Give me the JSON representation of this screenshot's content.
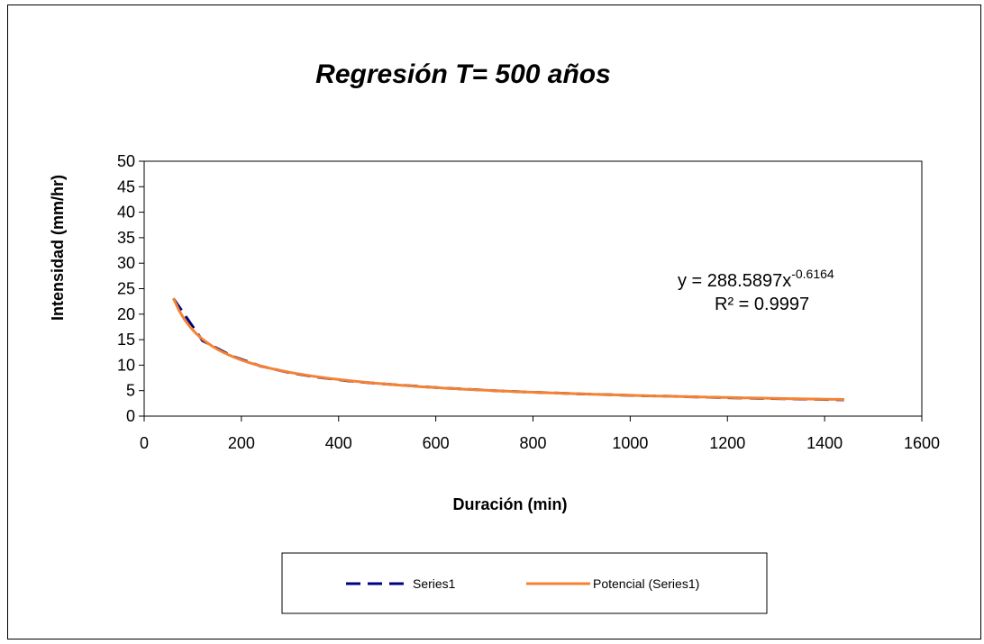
{
  "chart_data": {
    "type": "line",
    "title": "Regresión T= 500 años",
    "xlabel": "Duración (min)",
    "ylabel": "Intensidad (mm/hr)",
    "xlim": [
      0,
      1600
    ],
    "ylim": [
      0,
      50
    ],
    "x_ticks": [
      "0",
      "200",
      "400",
      "600",
      "800",
      "1000",
      "1200",
      "1400",
      "1600"
    ],
    "y_ticks": [
      "0",
      "5",
      "10",
      "15",
      "20",
      "25",
      "30",
      "35",
      "40",
      "45",
      "50"
    ],
    "grid": false,
    "legend_position": "bottom",
    "series": [
      {
        "name": "Series1",
        "style": "dashed",
        "color": "#000080",
        "x": [
          60,
          120,
          180,
          240,
          300,
          360,
          420,
          480,
          540,
          600,
          660,
          720,
          780,
          840,
          900,
          960,
          1020,
          1080,
          1140,
          1200,
          1260,
          1320,
          1380,
          1440
        ],
        "y": [
          23.1,
          14.8,
          11.8,
          9.8,
          8.5,
          7.6,
          6.9,
          6.4,
          6.0,
          5.6,
          5.3,
          5.0,
          4.75,
          4.55,
          4.35,
          4.2,
          4.0,
          3.9,
          3.75,
          3.6,
          3.5,
          3.4,
          3.3,
          3.2
        ]
      },
      {
        "name": "Potencial (Series1)",
        "style": "solid",
        "color": "#F58233",
        "trendline": {
          "type": "power",
          "a": 288.5897,
          "b": -0.6164,
          "x_range": [
            60,
            1440
          ]
        }
      }
    ],
    "annotations": {
      "equation_prefix": "y = 288.5897x",
      "equation_exponent": "-0.6164",
      "r2": "R² = 0.9997"
    }
  }
}
